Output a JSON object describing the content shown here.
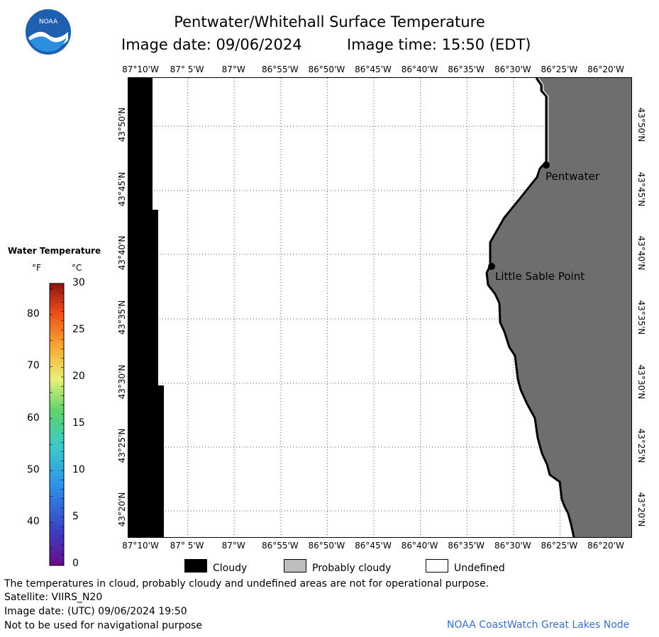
{
  "title": "Pentwater/Whitehall Surface Temperature",
  "image_date_label": "Image date: 09/06/2024",
  "image_time_label": "Image time: 15:50 (EDT)",
  "logo_text": "NOAA",
  "lon_labels": [
    "87°10'W",
    "87° 5'W",
    "87°W",
    "86°55'W",
    "86°50'W",
    "86°45'W",
    "86°40'W",
    "86°35'W",
    "86°30'W",
    "86°25'W",
    "86°20'W"
  ],
  "lat_labels": [
    "43°50'N",
    "43°45'N",
    "43°40'N",
    "43°35'N",
    "43°30'N",
    "43°25'N",
    "43°20'N"
  ],
  "places": [
    {
      "name": "Pentwater"
    },
    {
      "name": "Little Sable Point"
    }
  ],
  "legend": {
    "title": "Water Temperature",
    "unit_f": "°F",
    "unit_c": "°C",
    "f_ticks": [
      "80",
      "70",
      "60",
      "50",
      "40"
    ],
    "c_ticks": [
      "30",
      "25",
      "20",
      "15",
      "10",
      "5",
      "0"
    ]
  },
  "key": {
    "cloudy": "Cloudy",
    "probably_cloudy": "Probably cloudy",
    "undefined": "Undefined",
    "cloudy_color": "#000000",
    "probably_cloudy_color": "#bdbdbd",
    "undefined_color": "#ffffff"
  },
  "footer": {
    "note": "The temperatures in cloud, probably cloudy and undefined areas are not for operational purpose.",
    "satellite": "Satellite: VIIRS_N20",
    "utc_date": "Image date: (UTC) 09/06/2024  19:50",
    "nav_warning": "Not to be used for navigational purpose",
    "credit": "NOAA CoastWatch Great Lakes Node"
  },
  "colors": {
    "land": "#6e6e6e",
    "cloud": "#000000",
    "credit_text": "#3a6fc8"
  }
}
